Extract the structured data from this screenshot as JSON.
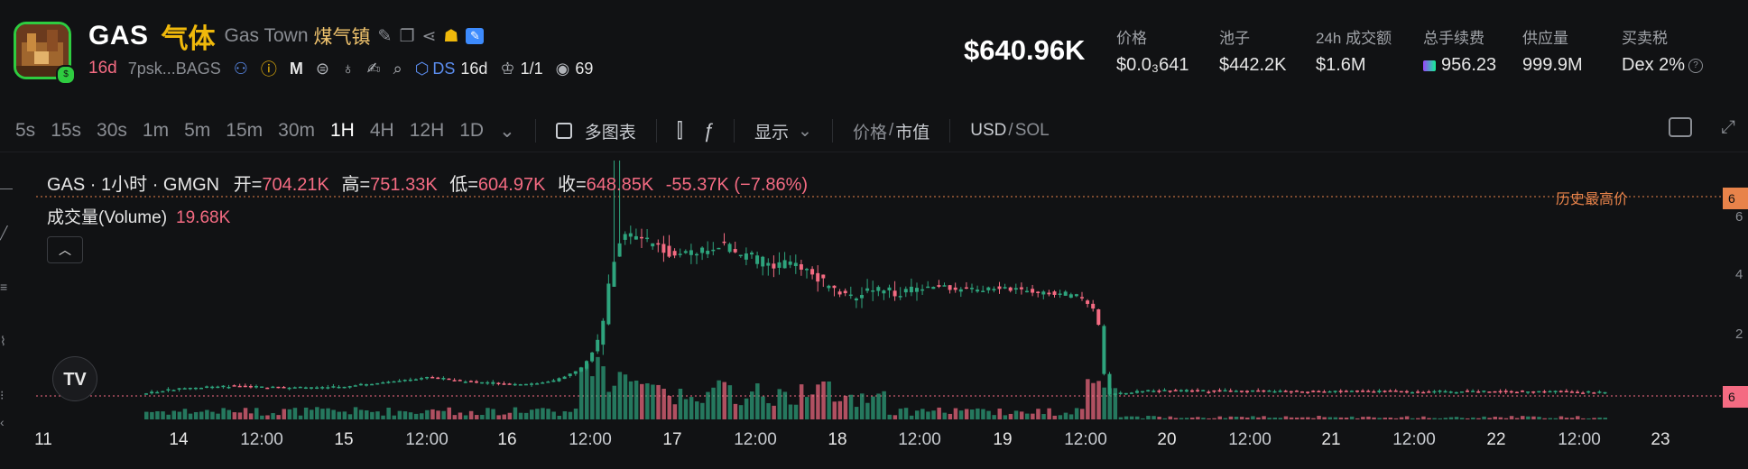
{
  "token": {
    "symbol": "GAS",
    "cn_name": "气体",
    "name": "Gas Town",
    "alt_name": "煤气镇",
    "age": "16d",
    "address": "7psk...BAGS",
    "ds_label": "DS",
    "ds_age": "16d",
    "crown_count": "1/1",
    "views": "69"
  },
  "market_cap": "$640.96K",
  "stats": [
    {
      "label": "价格",
      "value": "$0.0₃641"
    },
    {
      "label": "池子",
      "value": "$442.2K"
    },
    {
      "label": "24h 成交额",
      "value": "$1.6M"
    },
    {
      "label": "总手续费",
      "value": "956.23"
    },
    {
      "label": "供应量",
      "value": "999.9M"
    },
    {
      "label": "买卖税",
      "value": "Dex 2%"
    }
  ],
  "timeframes": [
    "5s",
    "15s",
    "30s",
    "1m",
    "5m",
    "15m",
    "30m",
    "1H",
    "4H",
    "12H",
    "1D"
  ],
  "active_timeframe": "1H",
  "toolbar": {
    "multi_chart": "多图表",
    "display": "显示",
    "price": "价格",
    "slash": "/",
    "mcap": "市值",
    "usd": "USD",
    "sol": "SOL"
  },
  "legend": {
    "title": "GAS · 1小时 · GMGN",
    "open_label": "开=",
    "open": "704.21K",
    "high_label": "高=",
    "high": "751.33K",
    "low_label": "低=",
    "low": "604.97K",
    "close_label": "收=",
    "close": "648.85K",
    "change": "-55.37K (−7.86%)"
  },
  "volume_legend": {
    "label": "成交量(Volume)",
    "value": "19.68K"
  },
  "ath_label": "历史最高价",
  "tv_logo": "TV",
  "y_axis_labels": [
    "6",
    "4",
    "2"
  ],
  "price_tags": [
    "6",
    "6"
  ],
  "x_axis": [
    "11",
    "14",
    "12:00",
    "15",
    "12:00",
    "16",
    "12:00",
    "17",
    "12:00",
    "18",
    "12:00",
    "19",
    "12:00",
    "20",
    "12:00",
    "21",
    "12:00",
    "22",
    "12:00",
    "23"
  ],
  "colors": {
    "up": "#2ea47d",
    "down": "#f46b82",
    "accent": "#e8834a"
  },
  "chart_data": {
    "type": "line",
    "title": "GAS · 1小时 · GMGN",
    "x": [
      "14",
      "15",
      "16",
      "17",
      "18",
      "19",
      "20",
      "21",
      "22"
    ],
    "values": [
      80,
      120,
      140,
      520,
      280,
      180,
      40,
      40,
      40
    ],
    "ylim": [
      0,
      700
    ]
  }
}
